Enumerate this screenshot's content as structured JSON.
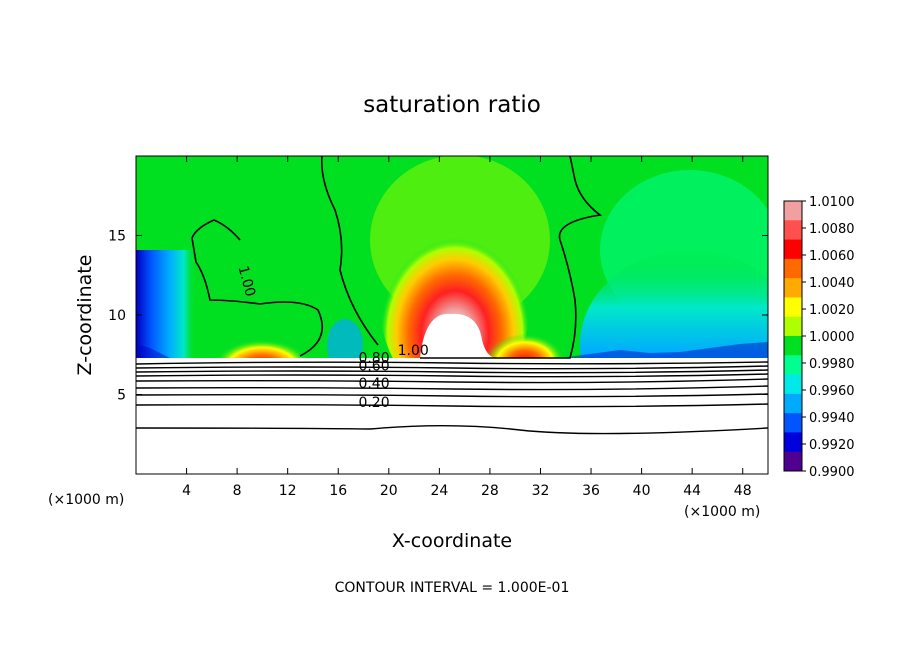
{
  "chart_data": {
    "type": "contour",
    "title": "saturation ratio",
    "xlabel": "X-coordinate",
    "ylabel": "Z-coordinate",
    "x_unit_left": "(×1000 m)",
    "x_unit_right": "(×1000 m)",
    "footer": "CONTOUR INTERVAL = 1.000E-01",
    "xlim": [
      0,
      50
    ],
    "ylim": [
      0,
      20
    ],
    "x_ticks": [
      4,
      8,
      12,
      16,
      20,
      24,
      28,
      32,
      36,
      40,
      44,
      48
    ],
    "y_ticks": [
      5,
      10,
      15
    ],
    "colorbar": {
      "range": [
        0.99,
        1.01
      ],
      "labels": [
        "1.0100",
        "1.0080",
        "1.0060",
        "1.0040",
        "1.0020",
        "1.0000",
        "0.9980",
        "0.9960",
        "0.9940",
        "0.9920",
        "0.9900"
      ],
      "colors": [
        "#f0a0a0",
        "#ff5050",
        "#ff0000",
        "#ff6a00",
        "#ffaa00",
        "#ffff00",
        "#b0ff00",
        "#00e020",
        "#00ff90",
        "#00e8e8",
        "#00aaff",
        "#0055ff",
        "#0000dd",
        "#500090"
      ]
    },
    "contour_labels": [
      {
        "text": "1.00",
        "x": 8.1,
        "z": 13.0
      },
      {
        "text": "1.00",
        "x": 20.7,
        "z": 7.5
      },
      {
        "text": "0.80",
        "x": 17.6,
        "z": 7.0
      },
      {
        "text": "0.60",
        "x": 17.6,
        "z": 6.5
      },
      {
        "text": "0.40",
        "x": 17.6,
        "z": 5.4
      },
      {
        "text": "0.20",
        "x": 17.6,
        "z": 4.2
      }
    ],
    "ground_contours": [
      0.2,
      0.4,
      0.6,
      0.8,
      1.0
    ]
  }
}
